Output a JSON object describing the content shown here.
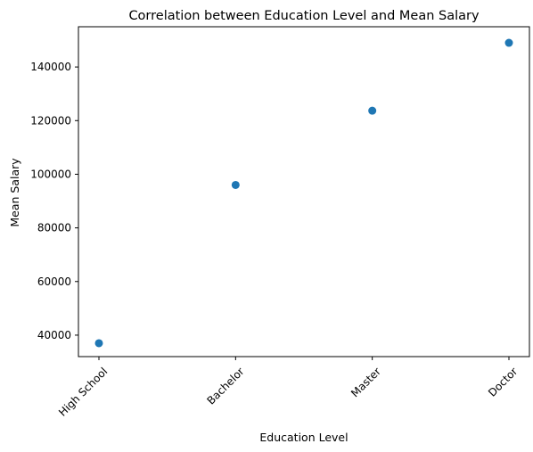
{
  "chart_data": {
    "type": "scatter",
    "title": "Correlation between Education Level and Mean Salary",
    "xlabel": "Education Level",
    "ylabel": "Mean Salary",
    "categories": [
      "High School",
      "Bachelor",
      "Master",
      "Doctor"
    ],
    "values": [
      37000,
      96000,
      123700,
      149000
    ],
    "ylim": [
      32000,
      155000
    ],
    "yticks": [
      40000,
      60000,
      80000,
      100000,
      120000,
      140000
    ],
    "ytick_labels": [
      "40000",
      "60000",
      "80000",
      "100000",
      "120000",
      "140000"
    ],
    "xtick_rotation_deg": 45,
    "grid": false,
    "marker_color": "#1f77b4"
  }
}
